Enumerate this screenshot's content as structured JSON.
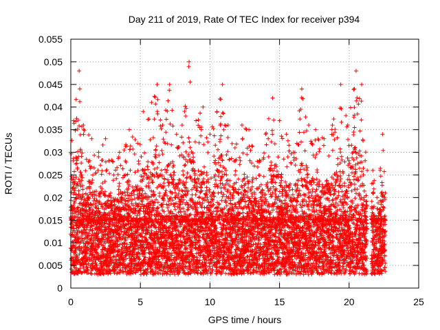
{
  "chart_data": {
    "type": "scatter",
    "title": "Day 211 of 2019, Rate Of TEC Index for receiver p394",
    "xlabel": "GPS time / hours",
    "ylabel": "ROTI / TECUs",
    "xlim": [
      0,
      25
    ],
    "ylim": [
      0,
      0.055
    ],
    "xticks": [
      0,
      5,
      10,
      15,
      20,
      25
    ],
    "xtick_labels": [
      "0",
      "5",
      "10",
      "15",
      "20",
      "25"
    ],
    "yticks": [
      0,
      0.005,
      0.01,
      0.015,
      0.02,
      0.025,
      0.03,
      0.035,
      0.04,
      0.045,
      0.05,
      0.055
    ],
    "ytick_labels": [
      "0",
      "0.005",
      "0.01",
      "0.015",
      "0.02",
      "0.025",
      "0.03",
      "0.035",
      "0.04",
      "0.045",
      "0.05",
      "0.055"
    ],
    "grid": true,
    "marker": "+",
    "color": "#ff0000",
    "series": [
      {
        "name": "ROTI",
        "x_range": [
          0,
          22.6
        ],
        "gap_hours": [
          21.3,
          21.6
        ],
        "typical_band": [
          0.005,
          0.015
        ],
        "envelope": [
          [
            0.0,
            0.03
          ],
          [
            0.2,
            0.037
          ],
          [
            0.6,
            0.048
          ],
          [
            0.9,
            0.036
          ],
          [
            1.5,
            0.033
          ],
          [
            2.0,
            0.03
          ],
          [
            2.5,
            0.033
          ],
          [
            3.0,
            0.028
          ],
          [
            3.5,
            0.03
          ],
          [
            4.2,
            0.035
          ],
          [
            4.8,
            0.032
          ],
          [
            5.2,
            0.039
          ],
          [
            5.8,
            0.041
          ],
          [
            6.2,
            0.045
          ],
          [
            6.6,
            0.036
          ],
          [
            7.1,
            0.045
          ],
          [
            7.6,
            0.034
          ],
          [
            8.0,
            0.036
          ],
          [
            8.5,
            0.05
          ],
          [
            9.0,
            0.037
          ],
          [
            9.5,
            0.04
          ],
          [
            10.0,
            0.034
          ],
          [
            10.5,
            0.039
          ],
          [
            10.9,
            0.045
          ],
          [
            11.3,
            0.036
          ],
          [
            11.8,
            0.031
          ],
          [
            12.3,
            0.036
          ],
          [
            12.8,
            0.035
          ],
          [
            13.4,
            0.028
          ],
          [
            14.0,
            0.034
          ],
          [
            14.5,
            0.042
          ],
          [
            15.0,
            0.037
          ],
          [
            15.5,
            0.034
          ],
          [
            16.0,
            0.03
          ],
          [
            16.6,
            0.044
          ],
          [
            17.1,
            0.036
          ],
          [
            17.6,
            0.035
          ],
          [
            18.2,
            0.033
          ],
          [
            18.8,
            0.036
          ],
          [
            19.4,
            0.045
          ],
          [
            19.9,
            0.036
          ],
          [
            20.5,
            0.048
          ],
          [
            20.9,
            0.045
          ],
          [
            21.3,
            0.026
          ],
          [
            21.7,
            0.026
          ],
          [
            22.0,
            0.02
          ],
          [
            22.4,
            0.034
          ],
          [
            22.6,
            0.021
          ]
        ]
      }
    ]
  }
}
